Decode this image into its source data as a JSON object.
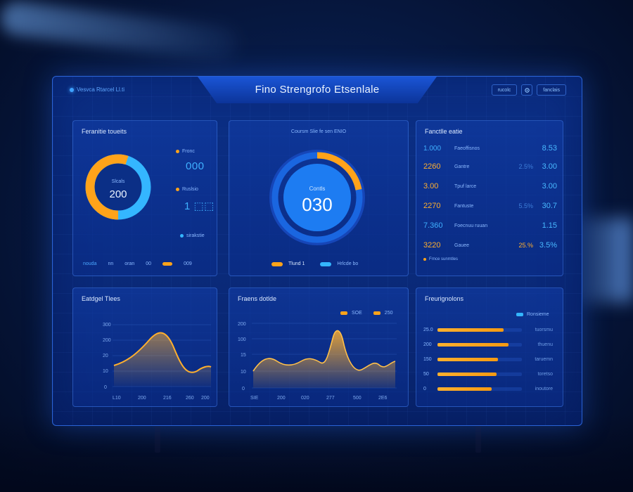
{
  "header": {
    "title": "Fino Strengrofo Etsenlale",
    "brand": "Vesvca Rtarcel Ll.ti",
    "controls": [
      "rucolc",
      "fanclais"
    ]
  },
  "donut_panel": {
    "title": "Feranitie toueits",
    "center_label": "Slcals",
    "center_value": "200",
    "legend": [
      {
        "label": "Fronc",
        "value": "000",
        "color": "#ffa31a"
      },
      {
        "label": "Ruslsio",
        "value": "1 ⬚⬚",
        "color": "#ffa31a"
      },
      {
        "label": "sirakstie",
        "value": "",
        "color": "#34b6ff"
      }
    ],
    "footer": [
      {
        "label": "nouda",
        "value": "nn"
      },
      {
        "label": "oran",
        "value": "00"
      },
      {
        "label": "",
        "value": "009"
      }
    ],
    "percent": 0.55
  },
  "gauge_panel": {
    "title": "Coursm Slie fe sen ENIO",
    "center_label": "Contls",
    "center_value": "030",
    "percent": 0.22,
    "legend": [
      {
        "label": "Tlund 1",
        "color": "#ffa31a"
      },
      {
        "label": "Hrlcde bo",
        "color": "#34b6ff"
      }
    ]
  },
  "ranking_panel": {
    "title": "Fanctlle eatie",
    "rows": [
      {
        "value": "1.000",
        "label": "Faeoffisnos",
        "pct": "",
        "end": "8.53"
      },
      {
        "value": "2260",
        "label": "Gantre",
        "pct": "2.5%",
        "end": "3.00"
      },
      {
        "value": "3.00",
        "label": "Tpuf larce",
        "pct": "",
        "end": "3.00"
      },
      {
        "value": "2270",
        "label": "Fantuste",
        "pct": "5.5%",
        "end": "30.7"
      },
      {
        "value": "7.360",
        "label": "Foecnuu ruuan",
        "pct": "",
        "end": "1.15"
      },
      {
        "value": "3220",
        "label": "Gauee",
        "pct": "25.%",
        "end": "3.5%"
      }
    ],
    "footnote": "Frnce sunmtles"
  },
  "line_panel_1": {
    "title": "Eatdgel Tlees",
    "y_ticks": [
      "300",
      "200",
      "20",
      "10",
      "0"
    ],
    "x_ticks": [
      "L10",
      "200",
      "216",
      "260",
      "200"
    ]
  },
  "line_panel_2": {
    "title": "Fraens dotlde",
    "legend": [
      "SOE",
      "250"
    ],
    "y_ticks": [
      "200",
      "100",
      "15",
      "10",
      "0"
    ],
    "x_ticks": [
      "SIE",
      "200",
      "020",
      "277",
      "500",
      "2E6"
    ]
  },
  "bar_panel": {
    "title": "Freurignolons",
    "legend": "Ronsieme",
    "rows": [
      {
        "tick": "25.0",
        "fill": 0.78,
        "end": "tuorsmu"
      },
      {
        "tick": "200",
        "fill": 0.84,
        "end": "thuenu"
      },
      {
        "tick": "150",
        "fill": 0.72,
        "end": "taruemn"
      },
      {
        "tick": "50",
        "fill": 0.7,
        "end": "toretso"
      },
      {
        "tick": "0",
        "fill": 0.64,
        "end": "inoutore"
      }
    ]
  },
  "colors": {
    "accent_orange": "#ffa31a",
    "accent_blue": "#34b6ff",
    "panel_border": "#2a63d6"
  }
}
